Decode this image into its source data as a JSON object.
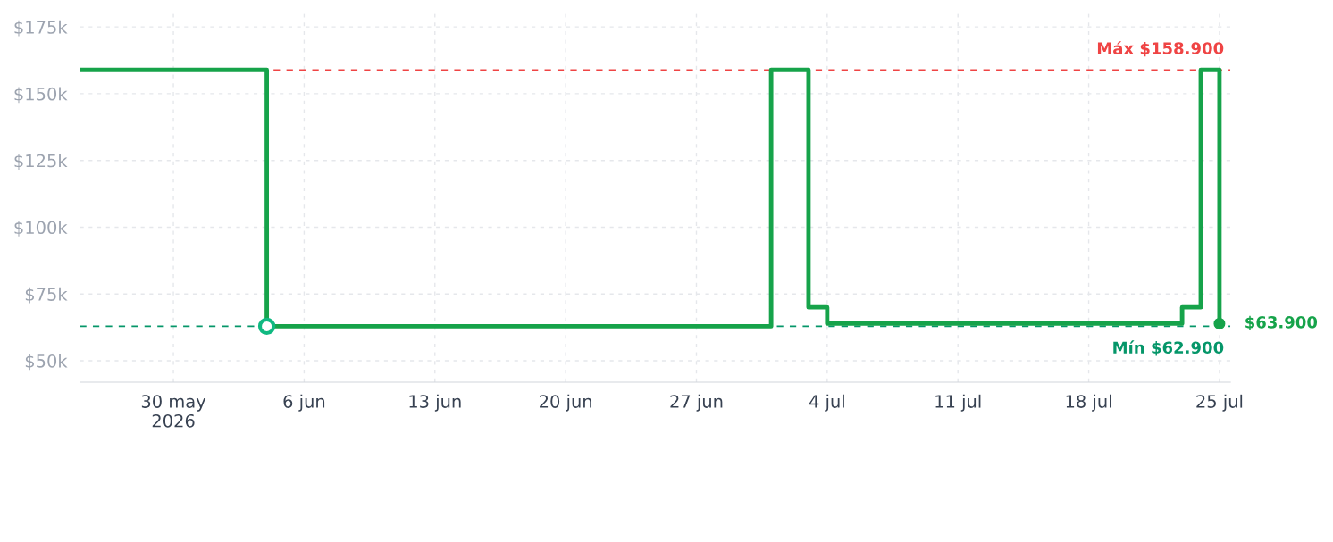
{
  "chart_data": {
    "type": "step",
    "x": [
      "2026-05-25",
      "2026-06-04",
      "2026-07-01",
      "2026-07-03",
      "2026-07-04",
      "2026-07-23",
      "2026-07-24",
      "2026-07-25"
    ],
    "series": [
      {
        "color": "#16a34a",
        "values": [
          158900,
          62900,
          158900,
          70000,
          63900,
          70000,
          158900,
          63900
        ]
      },
      {
        "type": "scatter",
        "color": "#10b981",
        "x": [
          "2026-06-04"
        ],
        "values": [
          62900
        ],
        "marker": "circle"
      },
      {
        "type": "scatter",
        "color": "#16a34a",
        "x": [
          "2026-07-25"
        ],
        "values": [
          63900
        ],
        "marker": "circle"
      }
    ],
    "xlim": [
      "2026-05-25",
      "2026-07-25T14:00"
    ],
    "xticks": [
      {
        "value": "2026-05-30",
        "label": "30 may\n2026"
      },
      {
        "value": "2026-06-06",
        "label": "6 jun"
      },
      {
        "value": "2026-06-13",
        "label": "13 jun"
      },
      {
        "value": "2026-06-20",
        "label": "20 jun"
      },
      {
        "value": "2026-06-27",
        "label": "27 jun"
      },
      {
        "value": "2026-07-04",
        "label": "4 jul"
      },
      {
        "value": "2026-07-11",
        "label": "11 jul"
      },
      {
        "value": "2026-07-18",
        "label": "18 jul"
      },
      {
        "value": "2026-07-25",
        "label": "25 jul"
      }
    ],
    "ylim": [
      42000,
      180000
    ],
    "yticks": [
      {
        "value": 50000,
        "label": "$50k"
      },
      {
        "value": 75000,
        "label": "$75k"
      },
      {
        "value": 100000,
        "label": "$100k"
      },
      {
        "value": 125000,
        "label": "$125k"
      },
      {
        "value": 150000,
        "label": "$150k"
      },
      {
        "value": 175000,
        "label": "$175k"
      }
    ],
    "ref_lines": [
      {
        "axis": "y",
        "value": 158900,
        "label": "Máx $158.900",
        "color": "#ef4444",
        "line_style": "dashed"
      },
      {
        "axis": "y",
        "value": 62900,
        "label": "Mín $62.900",
        "color": "#059669",
        "line_style": "dashed"
      }
    ],
    "annotations": [
      {
        "text": "$63.900",
        "x": "2026-07-25",
        "y": 63900
      }
    ],
    "grid": true,
    "legend": false
  }
}
